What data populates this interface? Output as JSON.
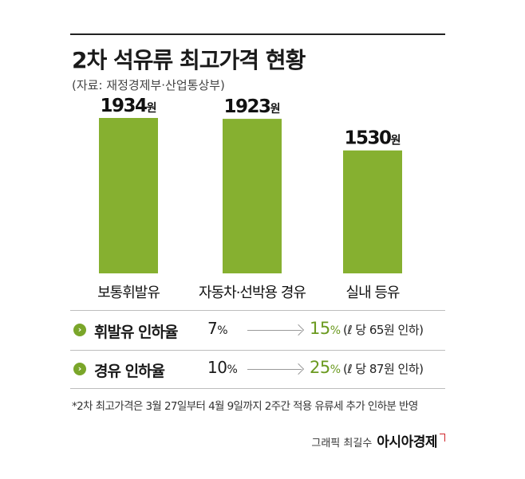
{
  "header": {
    "title": "2차 석유류 최고가격 현황",
    "source": "(자료: 재정경제부·산업통상부)"
  },
  "chart_data": {
    "type": "bar",
    "categories": [
      "보통휘발유",
      "자동차·선박용 경유",
      "실내 등유"
    ],
    "values": [
      1934,
      1923,
      1530
    ],
    "value_labels": [
      "1934원",
      "1923원",
      "1530원"
    ],
    "unit": "원",
    "ylim": [
      0,
      2000
    ],
    "grid": false,
    "legend": "none",
    "colors": {
      "bar": "#86b030"
    }
  },
  "rates": [
    {
      "label": "휘발유 인하율",
      "from": "7",
      "to": "15",
      "pct": "%",
      "note": "(ℓ 당 65원 인하)"
    },
    {
      "label": "경유 인하율",
      "from": "10",
      "to": "25",
      "pct": "%",
      "note": "(ℓ 당 87원 인하)"
    }
  ],
  "footnote": "*2차 최고가격은 3월 27일부터 4월 9일까지 2주간 적용 유류세 추가 인하분 반영",
  "credit": {
    "text": "그래픽 최길수",
    "brand": "아시아경제"
  }
}
